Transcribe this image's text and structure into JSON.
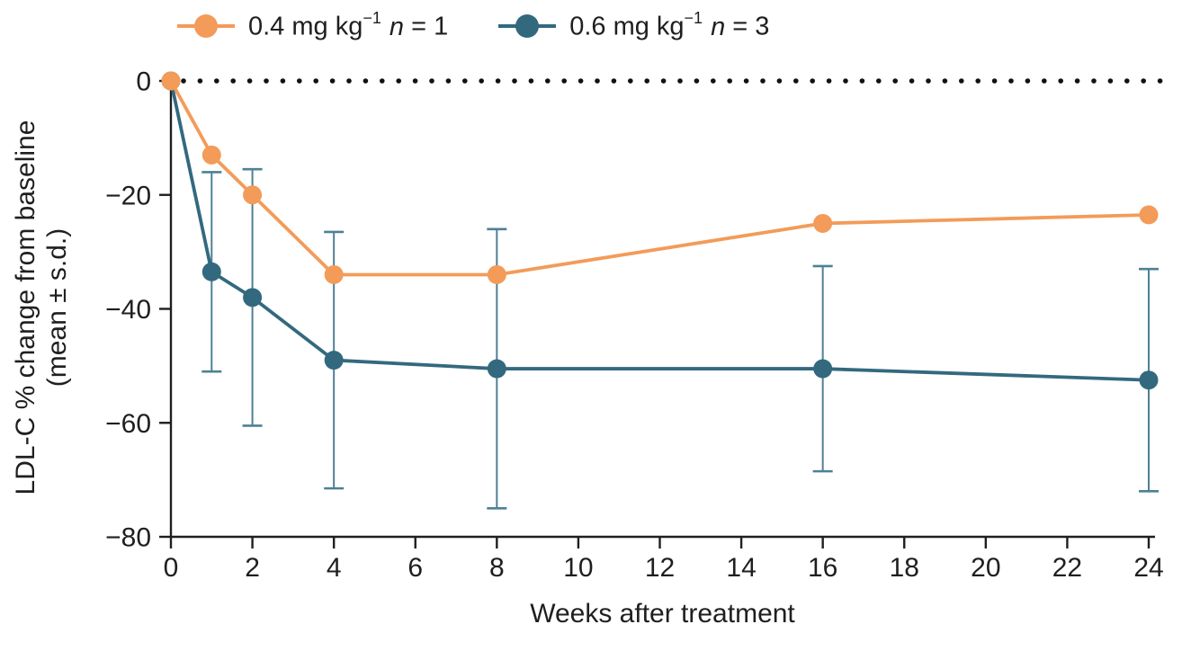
{
  "figure": {
    "background": "#ffffff",
    "text_color": "#1f1f1f",
    "axis_color": "#1f1f1f"
  },
  "legend": {
    "items": [
      {
        "dose": "0.4 mg kg",
        "exponent": "−1",
        "n_symbol": "n",
        "n_value": " = 1",
        "color": "#F39B59"
      },
      {
        "dose": "0.6 mg kg",
        "exponent": "−1",
        "n_symbol": "n",
        "n_value": " = 3",
        "color": "#33697E"
      }
    ]
  },
  "axes": {
    "x_title": "Weeks after treatment",
    "y_title_line1": "LDL-C % change from baseline",
    "y_title_line2": "(mean ± s.d.)"
  },
  "chart_data": {
    "type": "line",
    "title": "",
    "xlabel": "Weeks after treatment",
    "ylabel": "LDL-C % change from baseline (mean ± s.d.)",
    "x": [
      0,
      1,
      2,
      4,
      8,
      16,
      24
    ],
    "x_ticks": [
      0,
      2,
      4,
      6,
      8,
      10,
      12,
      14,
      16,
      18,
      20,
      22,
      24
    ],
    "y_ticks": [
      0,
      -20,
      -40,
      -60,
      -80
    ],
    "xlim": [
      0,
      24
    ],
    "ylim": [
      -80,
      0
    ],
    "grid": false,
    "legend_position": "top-left",
    "zero_reference_line": {
      "y": 0,
      "style": "dotted",
      "color": "#111111"
    },
    "series": [
      {
        "name": "0.4 mg kg⁻¹ n = 1",
        "color": "#F39B59",
        "n": 1,
        "values": [
          0,
          -13,
          -20,
          -34,
          -34,
          -25,
          -23.5
        ],
        "sd": null
      },
      {
        "name": "0.6 mg kg⁻¹ n = 3",
        "color": "#33697E",
        "error_bar_color": "#4E8096",
        "n": 3,
        "values": [
          0,
          -33.5,
          -38,
          -49,
          -50.5,
          -50.5,
          -52.5
        ],
        "sd": [
          0,
          17.5,
          22.5,
          22.5,
          24.5,
          18,
          19.5
        ]
      }
    ]
  }
}
